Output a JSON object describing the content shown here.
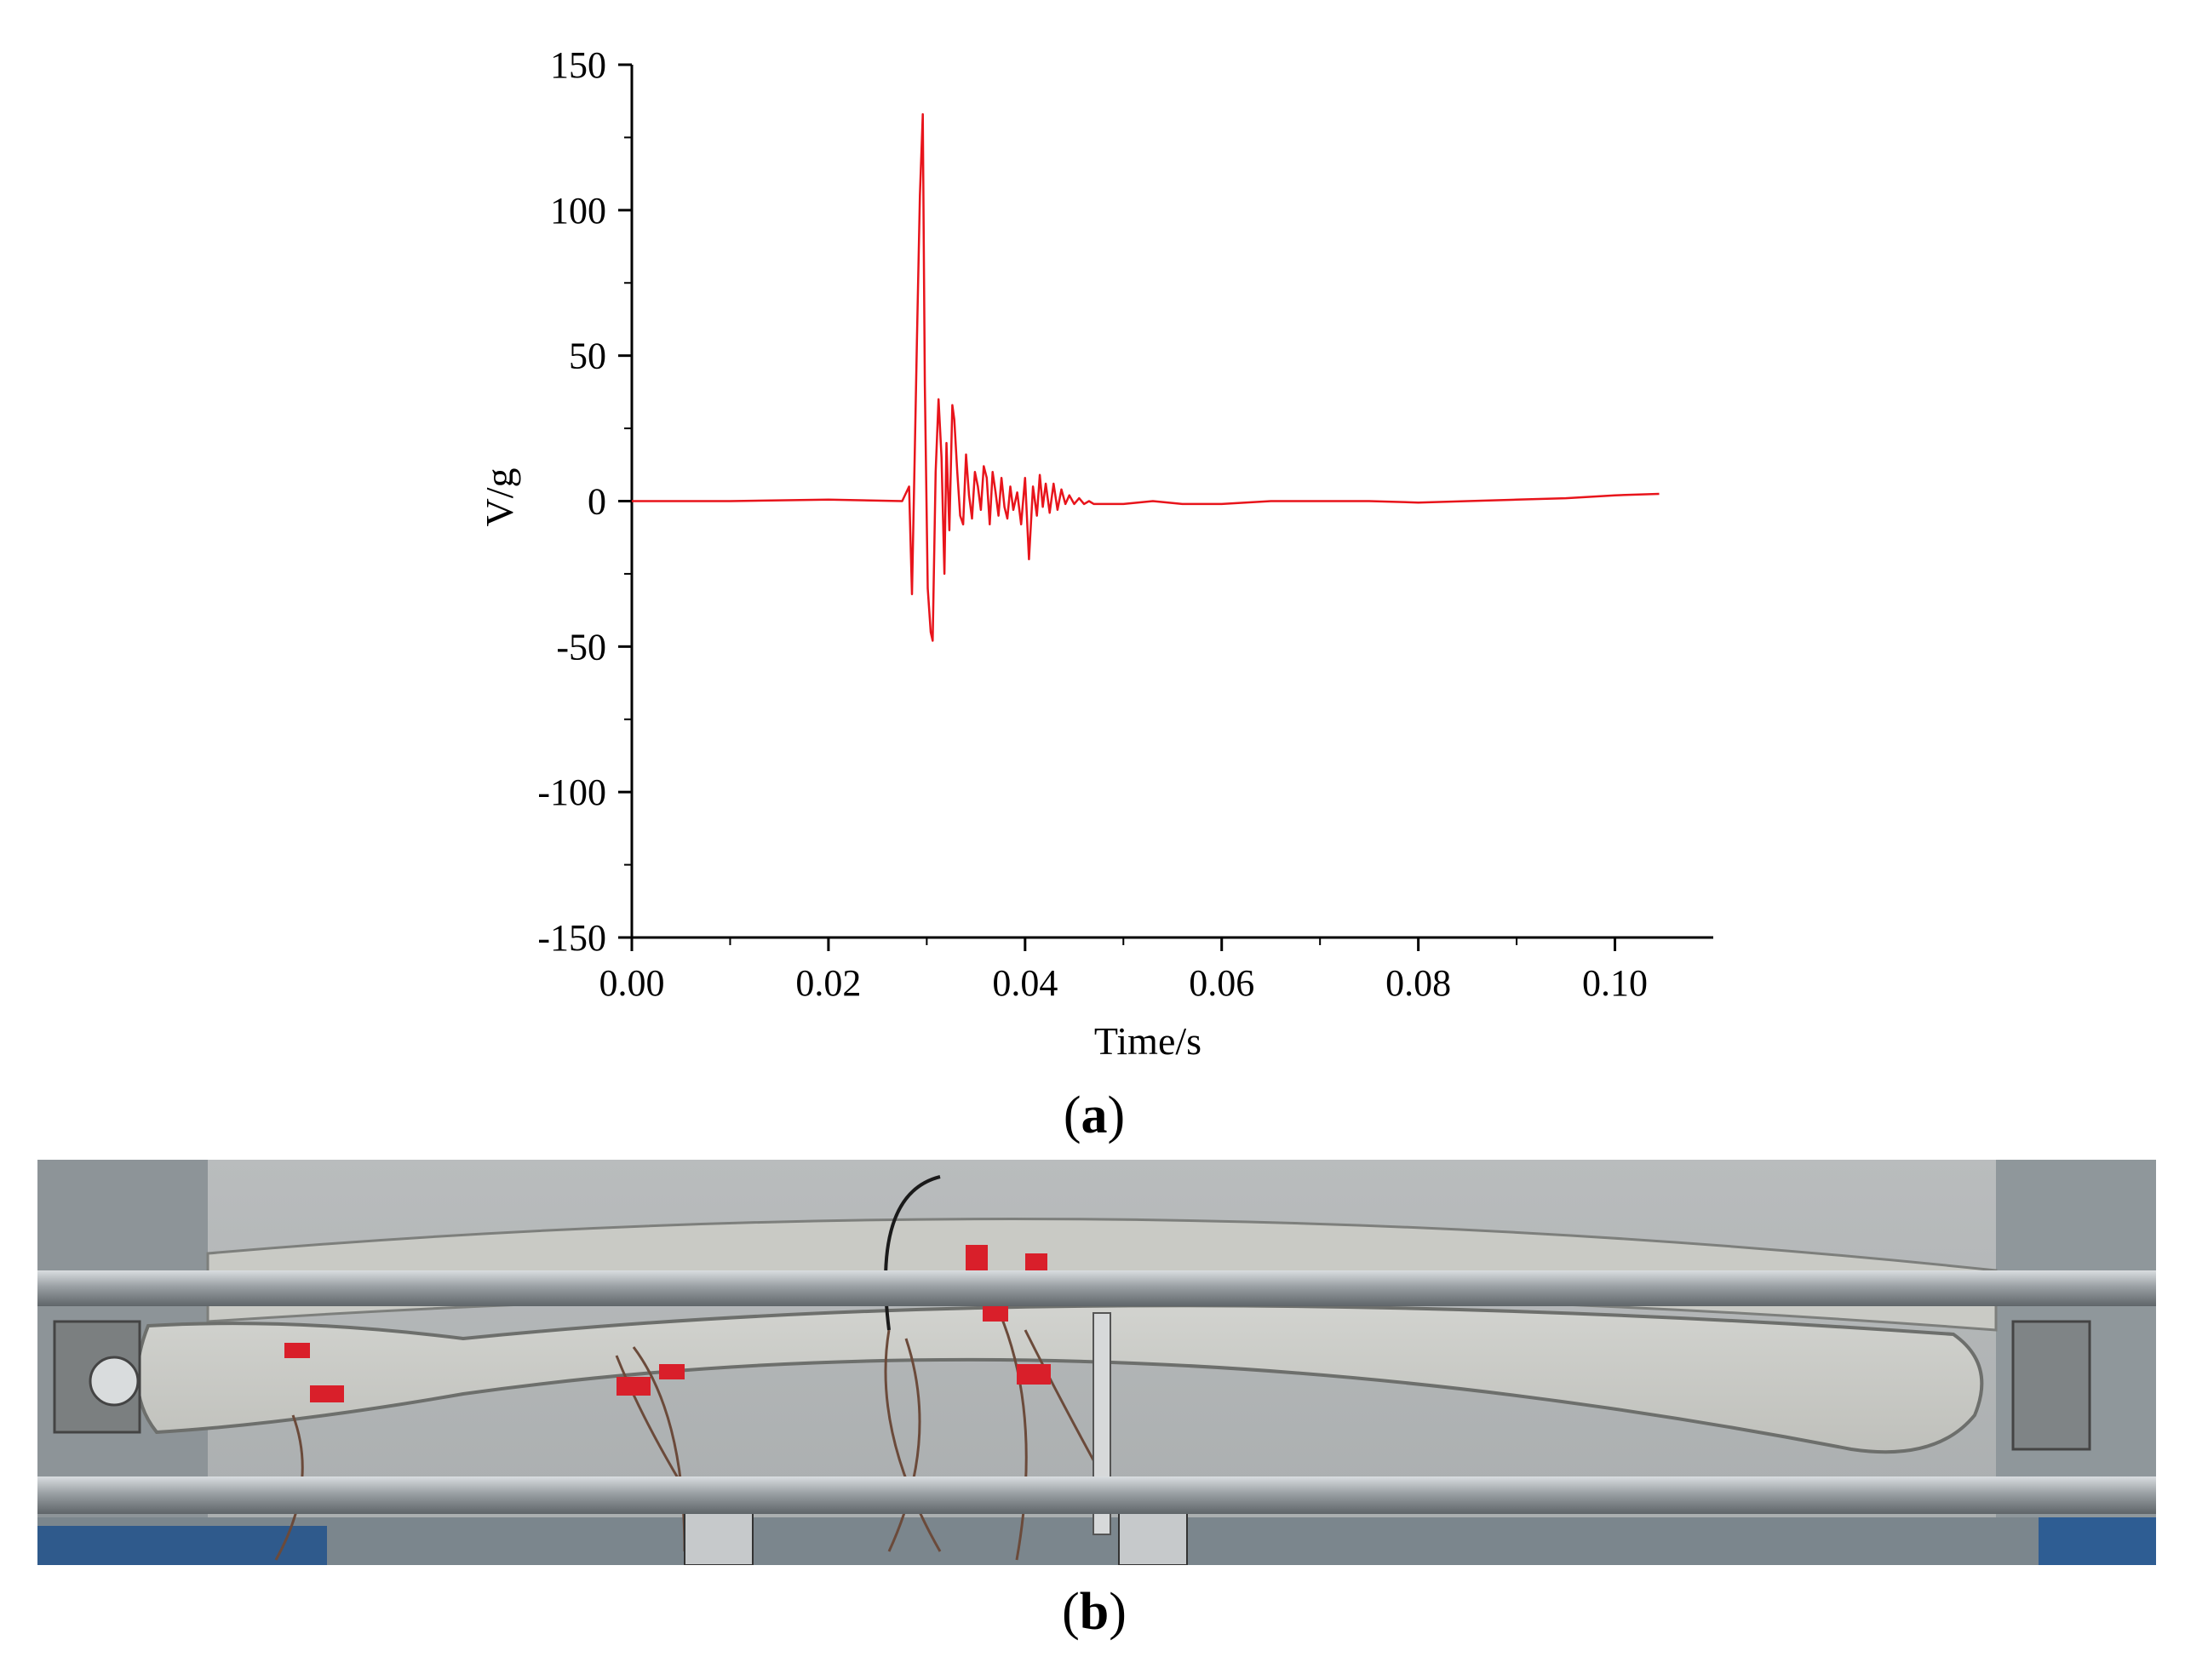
{
  "panel_a": {
    "label_open": "(",
    "label_letter": "a",
    "label_close": ")"
  },
  "panel_b": {
    "label_open": "(",
    "label_letter": "b",
    "label_close": ")"
  },
  "chart_data": {
    "type": "line",
    "title": "",
    "xlabel": "Time/s",
    "ylabel": "V/g",
    "xlim": [
      0,
      0.11
    ],
    "ylim": [
      -150,
      150
    ],
    "xticks": [
      0.0,
      0.02,
      0.04,
      0.06,
      0.08,
      0.1
    ],
    "xtick_labels": [
      "0.00",
      "0.02",
      "0.04",
      "0.06",
      "0.08",
      "0.10"
    ],
    "yticks": [
      150,
      100,
      50,
      0,
      -50,
      -100,
      -150
    ],
    "ytick_labels": [
      "150",
      "100",
      "50",
      "0",
      "-50",
      "-100",
      "-150"
    ],
    "grid": false,
    "legend": "none",
    "series": [
      {
        "color": "#e8141b",
        "x": [
          0.0,
          0.01,
          0.02,
          0.0275,
          0.0282,
          0.0285,
          0.0288,
          0.029,
          0.0293,
          0.0296,
          0.0298,
          0.0301,
          0.0304,
          0.0306,
          0.0309,
          0.0312,
          0.0315,
          0.0318,
          0.032,
          0.0323,
          0.0326,
          0.0328,
          0.0331,
          0.0334,
          0.0337,
          0.034,
          0.0343,
          0.0346,
          0.0349,
          0.0352,
          0.0355,
          0.0358,
          0.0361,
          0.0364,
          0.0367,
          0.037,
          0.0373,
          0.0376,
          0.0379,
          0.0382,
          0.0385,
          0.0388,
          0.0392,
          0.0396,
          0.04,
          0.0404,
          0.0408,
          0.0412,
          0.0415,
          0.0418,
          0.0421,
          0.0425,
          0.0429,
          0.0433,
          0.0437,
          0.0441,
          0.0445,
          0.045,
          0.0455,
          0.046,
          0.0465,
          0.047,
          0.048,
          0.05,
          0.053,
          0.056,
          0.06,
          0.065,
          0.07,
          0.075,
          0.08,
          0.085,
          0.09,
          0.095,
          0.1,
          0.1045
        ],
        "y": [
          0,
          0,
          0.5,
          0,
          5,
          -32,
          20,
          55,
          105,
          133,
          40,
          -30,
          -45,
          -48,
          10,
          35,
          15,
          -25,
          20,
          -10,
          33,
          28,
          10,
          -5,
          -8,
          16,
          2,
          -6,
          10,
          5,
          -3,
          12,
          8,
          -8,
          10,
          3,
          -5,
          8,
          -2,
          -6,
          5,
          -3,
          3,
          -8,
          8,
          -20,
          5,
          -5,
          9,
          -2,
          6,
          -4,
          6,
          -3,
          4,
          -1,
          2,
          -1,
          1,
          -1,
          0,
          -1,
          -1,
          -1,
          0,
          -1,
          -1,
          0,
          0,
          0,
          -0.5,
          0,
          0.5,
          1,
          2,
          2.5
        ]
      }
    ]
  }
}
